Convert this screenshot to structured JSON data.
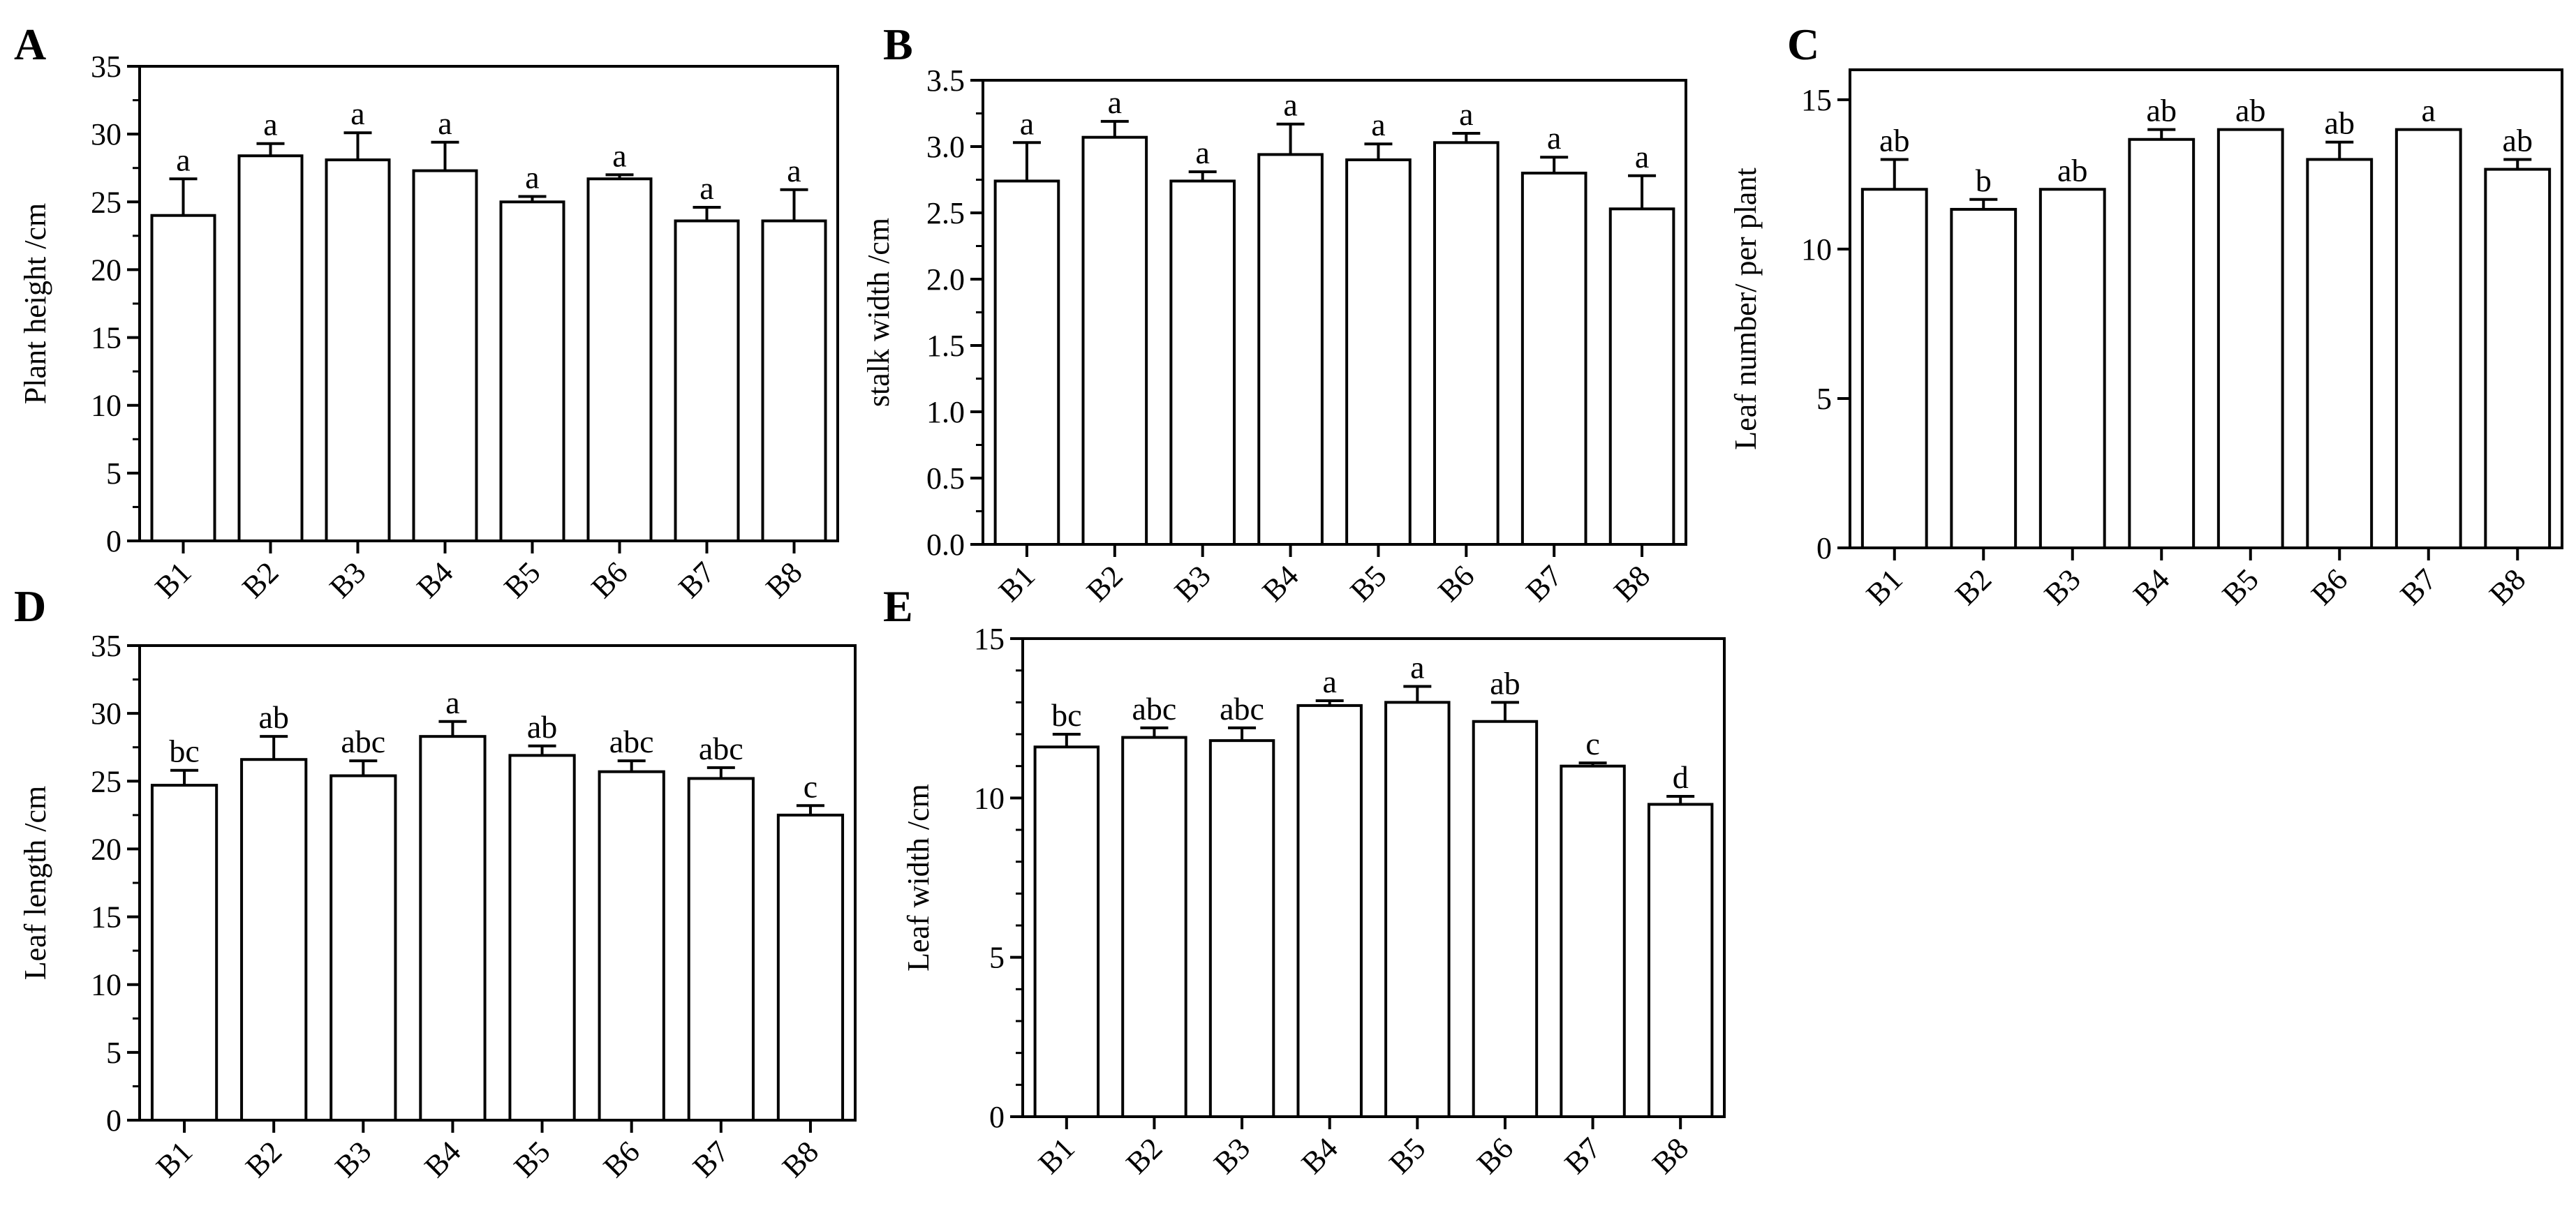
{
  "figure": {
    "panels": [
      "A",
      "B",
      "C",
      "D",
      "E"
    ]
  },
  "chart_data": [
    {
      "panel": "A",
      "type": "bar",
      "title": "",
      "xlabel": "",
      "ylabel": "Plant height /cm",
      "ylim": [
        0,
        35
      ],
      "yticks": [
        0,
        5,
        10,
        15,
        20,
        25,
        30,
        35
      ],
      "ytick_labels": [
        "0",
        "5",
        "10",
        "15",
        "20",
        "25",
        "30",
        "35"
      ],
      "categories": [
        "B1",
        "B2",
        "B3",
        "B4",
        "B5",
        "B6",
        "B7",
        "B8"
      ],
      "values": [
        24.0,
        28.4,
        28.1,
        27.3,
        25.0,
        26.7,
        23.6,
        23.6
      ],
      "errors": [
        2.7,
        0.9,
        2.0,
        2.1,
        0.4,
        0.3,
        1.0,
        2.3
      ],
      "letters": [
        "a",
        "a",
        "a",
        "a",
        "a",
        "a",
        "a",
        "a"
      ],
      "minor_per_major": 1
    },
    {
      "panel": "B",
      "type": "bar",
      "title": "",
      "xlabel": "",
      "ylabel": "stalk width /cm",
      "ylim": [
        0,
        3.5
      ],
      "yticks": [
        0,
        0.5,
        1.0,
        1.5,
        2.0,
        2.5,
        3.0,
        3.5
      ],
      "ytick_labels": [
        "0.0",
        "0.5",
        "1.0",
        "1.5",
        "2.0",
        "2.5",
        "3.0",
        "3.5"
      ],
      "categories": [
        "B1",
        "B2",
        "B3",
        "B4",
        "B5",
        "B6",
        "B7",
        "B8"
      ],
      "values": [
        2.74,
        3.07,
        2.74,
        2.94,
        2.9,
        3.03,
        2.8,
        2.53
      ],
      "errors": [
        0.29,
        0.12,
        0.07,
        0.23,
        0.12,
        0.07,
        0.12,
        0.25
      ],
      "letters": [
        "a",
        "a",
        "a",
        "a",
        "a",
        "a",
        "a",
        "a"
      ],
      "minor_per_major": 1
    },
    {
      "panel": "C",
      "type": "bar",
      "title": "",
      "xlabel": "",
      "ylabel": "Leaf number/ per plant",
      "ylim": [
        0,
        16
      ],
      "yticks": [
        0,
        5,
        10,
        15
      ],
      "ytick_labels": [
        "0",
        "5",
        "10",
        "15"
      ],
      "categories": [
        "B1",
        "B2",
        "B3",
        "B4",
        "B5",
        "B6",
        "B7",
        "B8"
      ],
      "values": [
        12.0,
        11.33,
        12.0,
        13.67,
        14.0,
        13.0,
        14.0,
        12.67
      ],
      "errors": [
        1.0,
        0.33,
        0.0,
        0.33,
        0.0,
        0.58,
        0.0,
        0.33
      ],
      "letters": [
        "ab",
        "b",
        "ab",
        "ab",
        "ab",
        "ab",
        "a",
        "ab"
      ],
      "minor_per_major": 0
    },
    {
      "panel": "D",
      "type": "bar",
      "title": "",
      "xlabel": "",
      "ylabel": "Leaf length /cm",
      "ylim": [
        0,
        35
      ],
      "yticks": [
        0,
        5,
        10,
        15,
        20,
        25,
        30,
        35
      ],
      "ytick_labels": [
        "0",
        "5",
        "10",
        "15",
        "20",
        "25",
        "30",
        "35"
      ],
      "categories": [
        "B1",
        "B2",
        "B3",
        "B4",
        "B5",
        "B6",
        "B7",
        "B8"
      ],
      "values": [
        24.7,
        26.6,
        25.4,
        28.3,
        26.9,
        25.7,
        25.2,
        22.5
      ],
      "errors": [
        1.1,
        1.7,
        1.1,
        1.1,
        0.7,
        0.8,
        0.8,
        0.7
      ],
      "letters": [
        "bc",
        "ab",
        "abc",
        "a",
        "ab",
        "abc",
        "abc",
        "c"
      ],
      "minor_per_major": 1
    },
    {
      "panel": "E",
      "type": "bar",
      "title": "",
      "xlabel": "",
      "ylabel": "Leaf width /cm",
      "ylim": [
        0,
        15
      ],
      "yticks": [
        0,
        5,
        10,
        15
      ],
      "ytick_labels": [
        "0",
        "5",
        "10",
        "15"
      ],
      "categories": [
        "B1",
        "B2",
        "B3",
        "B4",
        "B5",
        "B6",
        "B7",
        "B8"
      ],
      "values": [
        11.6,
        11.9,
        11.8,
        12.9,
        13.0,
        12.4,
        11.0,
        9.8
      ],
      "errors": [
        0.4,
        0.3,
        0.4,
        0.15,
        0.5,
        0.6,
        0.1,
        0.25
      ],
      "letters": [
        "bc",
        "abc",
        "abc",
        "a",
        "a",
        "ab",
        "c",
        "d"
      ],
      "minor_per_major": 4
    }
  ]
}
